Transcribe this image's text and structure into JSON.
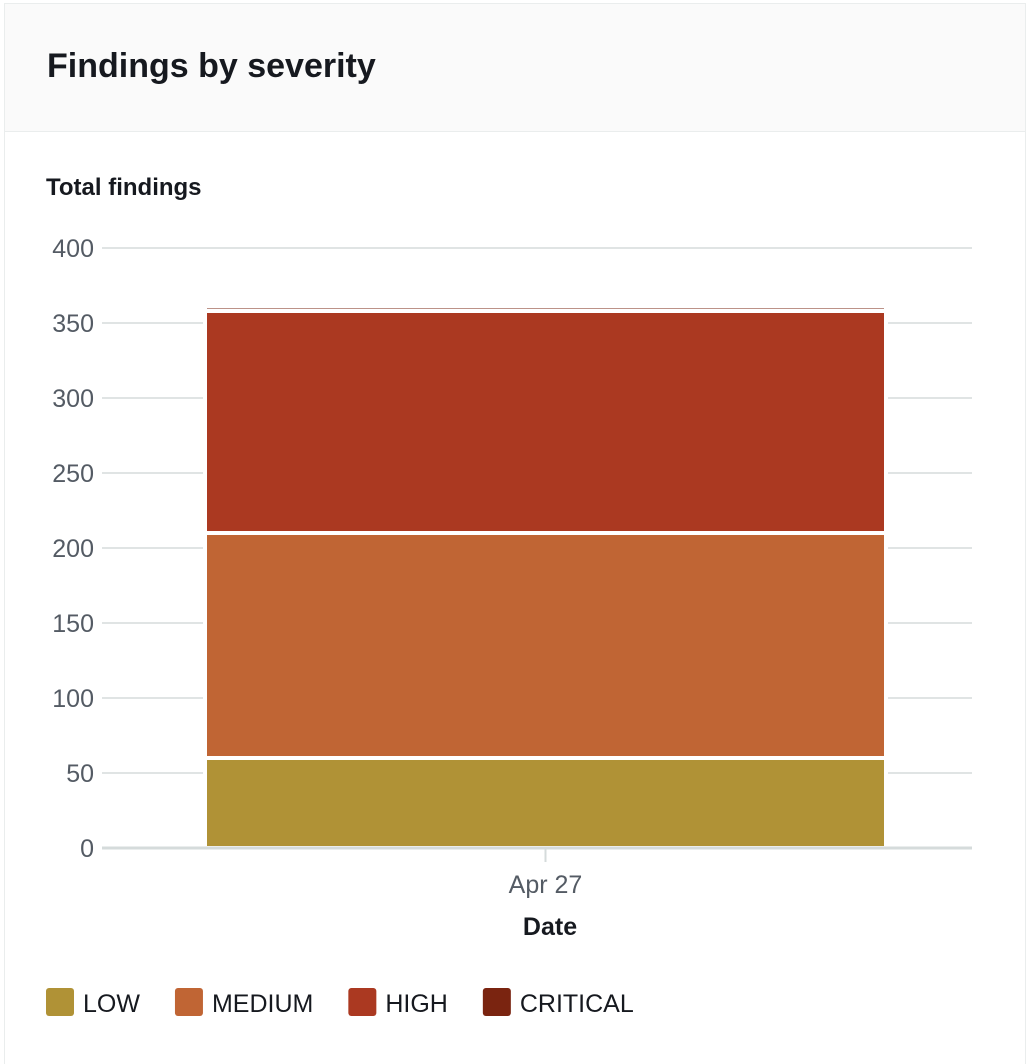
{
  "card": {
    "title": "Findings by severity"
  },
  "chart_data": {
    "type": "bar",
    "stacked": true,
    "categories": [
      "Apr 27"
    ],
    "series": [
      {
        "name": "LOW",
        "values": [
          60
        ],
        "color": "#b09236"
      },
      {
        "name": "MEDIUM",
        "values": [
          150
        ],
        "color": "#c06534"
      },
      {
        "name": "HIGH",
        "values": [
          148
        ],
        "color": "#ab3921"
      },
      {
        "name": "CRITICAL",
        "values": [
          3
        ],
        "color": "#7a2410"
      }
    ],
    "ylabel": "Total findings",
    "xlabel": "Date",
    "ylim": [
      0,
      400
    ],
    "yticks": [
      0,
      50,
      100,
      150,
      200,
      250,
      300,
      350,
      400
    ],
    "grid": true,
    "legend": "bottom-left"
  }
}
